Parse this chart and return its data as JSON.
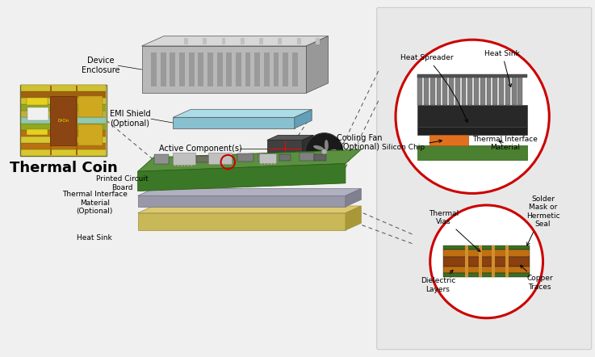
{
  "background_color": "#ffffff",
  "fig_width": 7.37,
  "fig_height": 4.42,
  "dpi": 100,
  "labels": {
    "device_enclosure": "Device\nEnclosure",
    "emi_shield": "EMI Shield\n(Optional)",
    "active_components": "Active Component(s)",
    "cooling_fan": "Cooling Fan\n(Optional)",
    "thermal_coin": "Thermal Coin",
    "pcb": "Printed Circuit\nBoard",
    "thermal_interface_material": "Thermal Interface\nMaterial\n(Optional)",
    "heat_sink_bottom": "Heat Sink",
    "heat_spreader": "Heat Spreader",
    "heat_sink_top": "Heat Sink",
    "silicon_chip": "Silicon Chip",
    "thermal_interface_material_top": "Thermal Interface\nMaterial",
    "thermal_vias": "Thermal\nVias",
    "solder_mask": "Solder\nMask or\nHermetic\nSeal",
    "dielectric_layers": "Dielectric\nLayers",
    "copper_traces": "Copper\nTraces"
  },
  "colors": {
    "background": "#f0f0f0",
    "enc_face": "#b8b8b8",
    "enc_top": "#d8d8d8",
    "enc_side": "#989898",
    "enc_vent": "#a0a0a0",
    "emi_face": "#88c0d0",
    "emi_top": "#aadde8",
    "emi_side": "#60a0b8",
    "ac_face": "#404040",
    "ac_top": "#585858",
    "ac_side": "#303030",
    "pcb_face": "#3a7828",
    "pcb_top": "#4a9838",
    "pcb_side": "#285818",
    "pcb_ti_face": "#a0a878",
    "pcb_ti_top": "#b8c090",
    "pcb_ti_side": "#808860",
    "pcb_hs_face": "#c8b860",
    "pcb_hs_top": "#d8cc80",
    "pcb_hs_side": "#a89840",
    "circle_red": "#cc0000",
    "orange_chip": "#e07020",
    "black_body": "#282828",
    "gray_fin": "#707070",
    "green_pcb2": "#3a7020",
    "copper": "#c87820",
    "dielectric": "#8b4513",
    "solder_green": "#3a7020",
    "text_color": "#000000",
    "gray_bg": "#e8e8e8",
    "coin_yellow": "#d4a020",
    "coin_brown": "#8b5a00",
    "coin_green": "#708020",
    "coin_cyan": "#90c0c0",
    "coin_white": "#f0f0e0"
  },
  "font_sizes": {
    "thermal_coin": 13,
    "labels": 7,
    "small_labels": 6.5,
    "labels_bold": 8
  }
}
